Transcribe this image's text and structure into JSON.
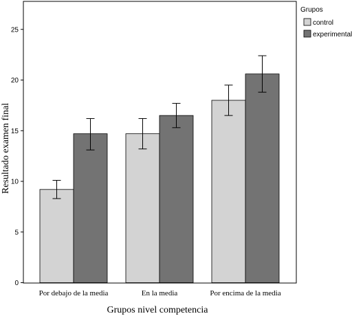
{
  "chart_data": {
    "type": "bar",
    "title": "",
    "xlabel": "Grupos nivel competencia",
    "ylabel": "Resultado examen final",
    "categories": [
      "Por debajo de la media",
      "En la media",
      "Por encima de la media"
    ],
    "ylim": [
      0,
      28
    ],
    "yticks": [
      0,
      5,
      10,
      15,
      20,
      25
    ],
    "grid": false,
    "legend": {
      "title": "Grupos",
      "placement": "right-outside"
    },
    "series": [
      {
        "name": "control",
        "color": "#d3d3d3",
        "values": [
          9.2,
          14.7,
          18.0
        ],
        "error_low": [
          8.3,
          13.2,
          16.5
        ],
        "error_high": [
          10.1,
          16.2,
          19.5
        ]
      },
      {
        "name": "experimental",
        "color": "#737373",
        "values": [
          14.7,
          16.5,
          20.6
        ],
        "error_low": [
          13.1,
          15.3,
          18.8
        ],
        "error_high": [
          16.2,
          17.7,
          22.4
        ]
      }
    ]
  }
}
